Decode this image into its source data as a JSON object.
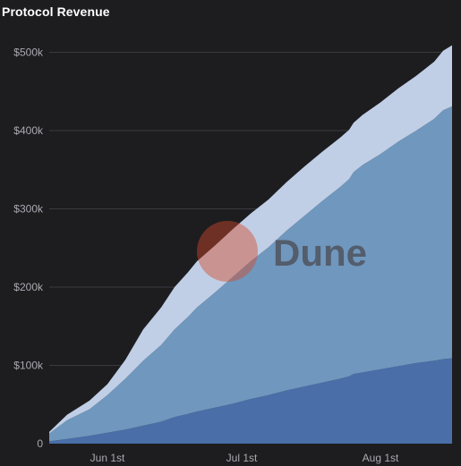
{
  "title": "Protocol Revenue",
  "watermark": {
    "text": "Dune",
    "text_color": "#4a4a52",
    "circle_fill": "#d2492a",
    "circle_opacity": 0.45
  },
  "colors": {
    "background": "#1d1d20",
    "grid": "#3a3a3f",
    "axis_text": "#a9a9b0"
  },
  "chart_data": {
    "type": "area",
    "stacked": true,
    "title": "Protocol Revenue",
    "x_axis": {
      "type": "date",
      "range": [
        "2023-05-19",
        "2023-08-17"
      ],
      "tick_labels": [
        "Jun 1st",
        "Jul 1st",
        "Aug 1st"
      ],
      "tick_dates": [
        "2023-06-01",
        "2023-07-01",
        "2023-08-01"
      ]
    },
    "y_axis": {
      "range": [
        0,
        520000
      ],
      "ticks": [
        0,
        100000,
        200000,
        300000,
        400000,
        500000
      ],
      "tick_labels": [
        "0",
        "$100k",
        "$200k",
        "$300k",
        "$400k",
        "$500k"
      ]
    },
    "grid": true,
    "legend": "none",
    "x": [
      "2023-05-19",
      "2023-05-23",
      "2023-05-28",
      "2023-06-01",
      "2023-06-05",
      "2023-06-09",
      "2023-06-13",
      "2023-06-16",
      "2023-06-19",
      "2023-06-21",
      "2023-06-25",
      "2023-06-29",
      "2023-07-03",
      "2023-07-07",
      "2023-07-11",
      "2023-07-15",
      "2023-07-19",
      "2023-07-23",
      "2023-07-25",
      "2023-07-26",
      "2023-07-28",
      "2023-08-01",
      "2023-08-05",
      "2023-08-09",
      "2023-08-13",
      "2023-08-15",
      "2023-08-17"
    ],
    "series": [
      {
        "color": "#4a6ea8",
        "values": [
          3000,
          6000,
          10000,
          14000,
          18000,
          23000,
          28000,
          34000,
          38000,
          41000,
          46000,
          51000,
          57000,
          62000,
          68000,
          73000,
          78000,
          83000,
          86000,
          89000,
          91000,
          95000,
          99000,
          103000,
          106000,
          108000,
          109000
        ]
      },
      {
        "color": "#7097bd",
        "values": [
          10000,
          24000,
          34000,
          48000,
          65000,
          83000,
          98000,
          112000,
          124000,
          133000,
          147000,
          162000,
          176000,
          189000,
          204000,
          218000,
          232000,
          245000,
          252000,
          258000,
          265000,
          275000,
          287000,
          297000,
          309000,
          318000,
          322000
        ]
      },
      {
        "color": "#c0cfe6",
        "values": [
          2000,
          7000,
          11000,
          14000,
          24000,
          40000,
          48000,
          54000,
          57000,
          59000,
          60000,
          61000,
          61000,
          61000,
          62000,
          63000,
          63000,
          63000,
          63000,
          63000,
          64000,
          66000,
          68000,
          70000,
          73000,
          76000,
          78000
        ]
      }
    ]
  }
}
